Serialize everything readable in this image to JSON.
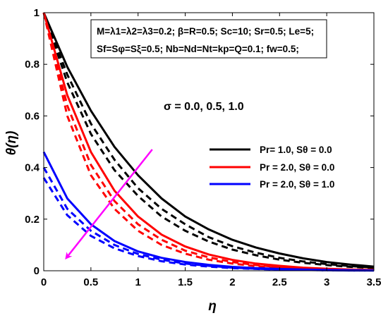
{
  "chart_data": {
    "type": "line",
    "xlabel": "η",
    "ylabel": "θ(η)",
    "xlim": [
      0,
      3.5
    ],
    "ylim": [
      0,
      1
    ],
    "xticks": [
      "0",
      "0.5",
      "1",
      "1.5",
      "2",
      "2.5",
      "3",
      "3.5"
    ],
    "yticks": [
      "0",
      "0.2",
      "0.4",
      "0.6",
      "0.8",
      "1"
    ],
    "grid": false,
    "legend_position": "center-right",
    "info_box": [
      "M=λ1=λ2=λ3=0.2; β=R=0.5; Sc=10; Sr=0.5; Le=5;",
      "Sf=Sφ=Sξ=0.5; Nb=Nd=Nt=kp=Q=0.1; fw=0.5;"
    ],
    "annotation": "σ = 0.0, 0.5, 1.0",
    "arrow_color": "#ff00ff",
    "legend": [
      {
        "label": "Pr= 1.0, Sθ = 0.0",
        "color": "#000000"
      },
      {
        "label": "Pr = 2.0, Sθ = 0.0",
        "color": "#ff0000"
      },
      {
        "label": "Pr = 2.0, Sθ = 1.0",
        "color": "#0000ff"
      }
    ],
    "x": [
      0,
      0.25,
      0.5,
      0.75,
      1.0,
      1.25,
      1.5,
      1.75,
      2.0,
      2.25,
      2.5,
      2.75,
      3.0,
      3.25,
      3.5
    ],
    "series": [
      {
        "group": 0,
        "color": "#000000",
        "style": "solid",
        "values": [
          1.0,
          0.79,
          0.62,
          0.48,
          0.37,
          0.28,
          0.21,
          0.16,
          0.12,
          0.09,
          0.067,
          0.048,
          0.034,
          0.024,
          0.016
        ]
      },
      {
        "group": 0,
        "color": "#000000",
        "style": "dashed",
        "values": [
          1.0,
          0.76,
          0.57,
          0.43,
          0.32,
          0.24,
          0.18,
          0.13,
          0.095,
          0.07,
          0.05,
          0.036,
          0.026,
          0.018,
          0.012
        ]
      },
      {
        "group": 0,
        "color": "#000000",
        "style": "dashed",
        "values": [
          1.0,
          0.73,
          0.53,
          0.39,
          0.29,
          0.21,
          0.155,
          0.113,
          0.082,
          0.06,
          0.043,
          0.031,
          0.022,
          0.015,
          0.011
        ]
      },
      {
        "group": 1,
        "color": "#ff0000",
        "style": "solid",
        "values": [
          1.0,
          0.68,
          0.46,
          0.31,
          0.21,
          0.14,
          0.094,
          0.063,
          0.042,
          0.028,
          0.019,
          0.012,
          0.008,
          0.005,
          0.003
        ]
      },
      {
        "group": 1,
        "color": "#ff0000",
        "style": "dashed",
        "values": [
          1.0,
          0.64,
          0.41,
          0.27,
          0.18,
          0.12,
          0.078,
          0.052,
          0.034,
          0.022,
          0.014,
          0.009,
          0.006,
          0.004,
          0.003
        ]
      },
      {
        "group": 1,
        "color": "#ff0000",
        "style": "dashed",
        "values": [
          1.0,
          0.6,
          0.37,
          0.24,
          0.155,
          0.1,
          0.066,
          0.043,
          0.028,
          0.018,
          0.012,
          0.008,
          0.005,
          0.003,
          0.002
        ]
      },
      {
        "group": 2,
        "color": "#0000ff",
        "style": "solid",
        "values": [
          0.46,
          0.28,
          0.18,
          0.115,
          0.075,
          0.05,
          0.034,
          0.023,
          0.015,
          0.01,
          0.007,
          0.005,
          0.003,
          0.002,
          0.001
        ]
      },
      {
        "group": 2,
        "color": "#0000ff",
        "style": "dashed",
        "values": [
          0.4,
          0.24,
          0.155,
          0.1,
          0.065,
          0.043,
          0.028,
          0.019,
          0.012,
          0.008,
          0.005,
          0.003,
          0.002,
          0.001,
          0.001
        ]
      },
      {
        "group": 2,
        "color": "#0000ff",
        "style": "dashed",
        "values": [
          0.36,
          0.215,
          0.135,
          0.087,
          0.057,
          0.037,
          0.024,
          0.016,
          0.01,
          0.007,
          0.004,
          0.003,
          0.002,
          0.001,
          0.001
        ]
      }
    ],
    "arrow": {
      "from": [
        1.15,
        0.47
      ],
      "to": [
        0.24,
        0.05
      ]
    }
  }
}
